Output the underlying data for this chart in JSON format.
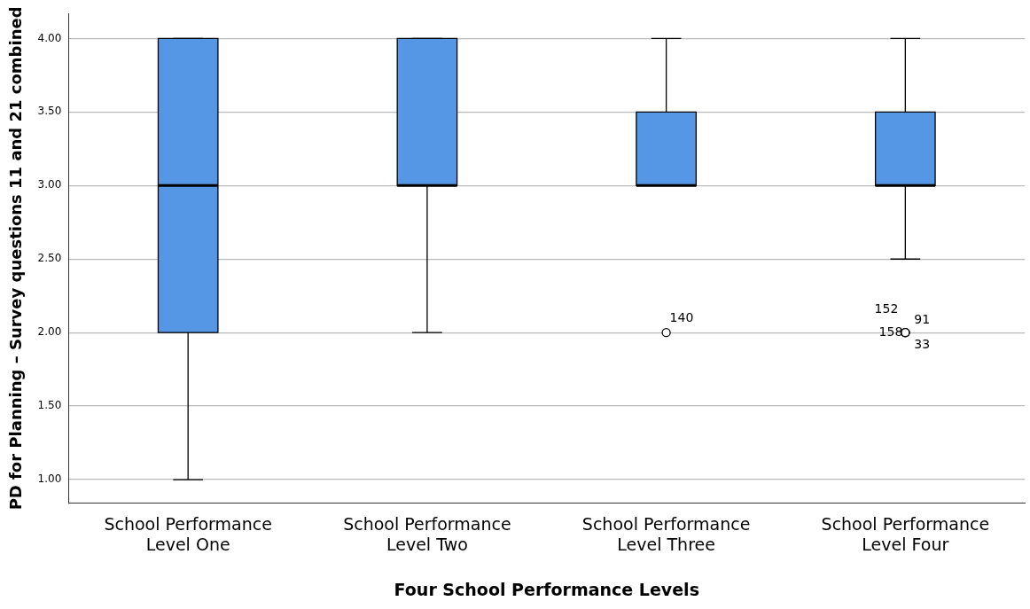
{
  "chart_data": {
    "type": "box",
    "xlabel": "Four School Performance Levels",
    "ylabel": "PD for Planning – Survey questions 11 and 21 combined",
    "categories": [
      "School Performance Level One",
      "School Performance Level Two",
      "School Performance Level Three",
      "School Performance Level Four"
    ],
    "boxes": [
      {
        "low": 1,
        "q1": 2,
        "median": 3,
        "q3": 4,
        "high": 4
      },
      {
        "low": 2,
        "q1": 3,
        "median": 3,
        "q3": 4,
        "high": 4
      },
      {
        "low": 3,
        "q1": 3,
        "median": 3,
        "q3": 3.5,
        "high": 4,
        "outliers": [
          2
        ]
      },
      {
        "low": 2.5,
        "q1": 3,
        "median": 3,
        "q3": 3.5,
        "high": 4,
        "outliers": [
          2,
          2,
          2,
          2
        ]
      }
    ],
    "color": "#5596e5",
    "ylim": [
      0.84,
      4.17
    ],
    "yticks": [
      {
        "value": 1,
        "label": "1.00"
      },
      {
        "value": 1.5,
        "label": "1.50"
      },
      {
        "value": 2,
        "label": "2.00"
      },
      {
        "value": 2.5,
        "label": "2.50"
      },
      {
        "value": 3,
        "label": "3.00"
      },
      {
        "value": 3.5,
        "label": "3.50"
      },
      {
        "value": 4,
        "label": "4.00"
      }
    ],
    "grid": "y",
    "legend": false,
    "marker": "circle",
    "annotations": [
      "140",
      "152",
      "91",
      "158",
      "33"
    ]
  }
}
